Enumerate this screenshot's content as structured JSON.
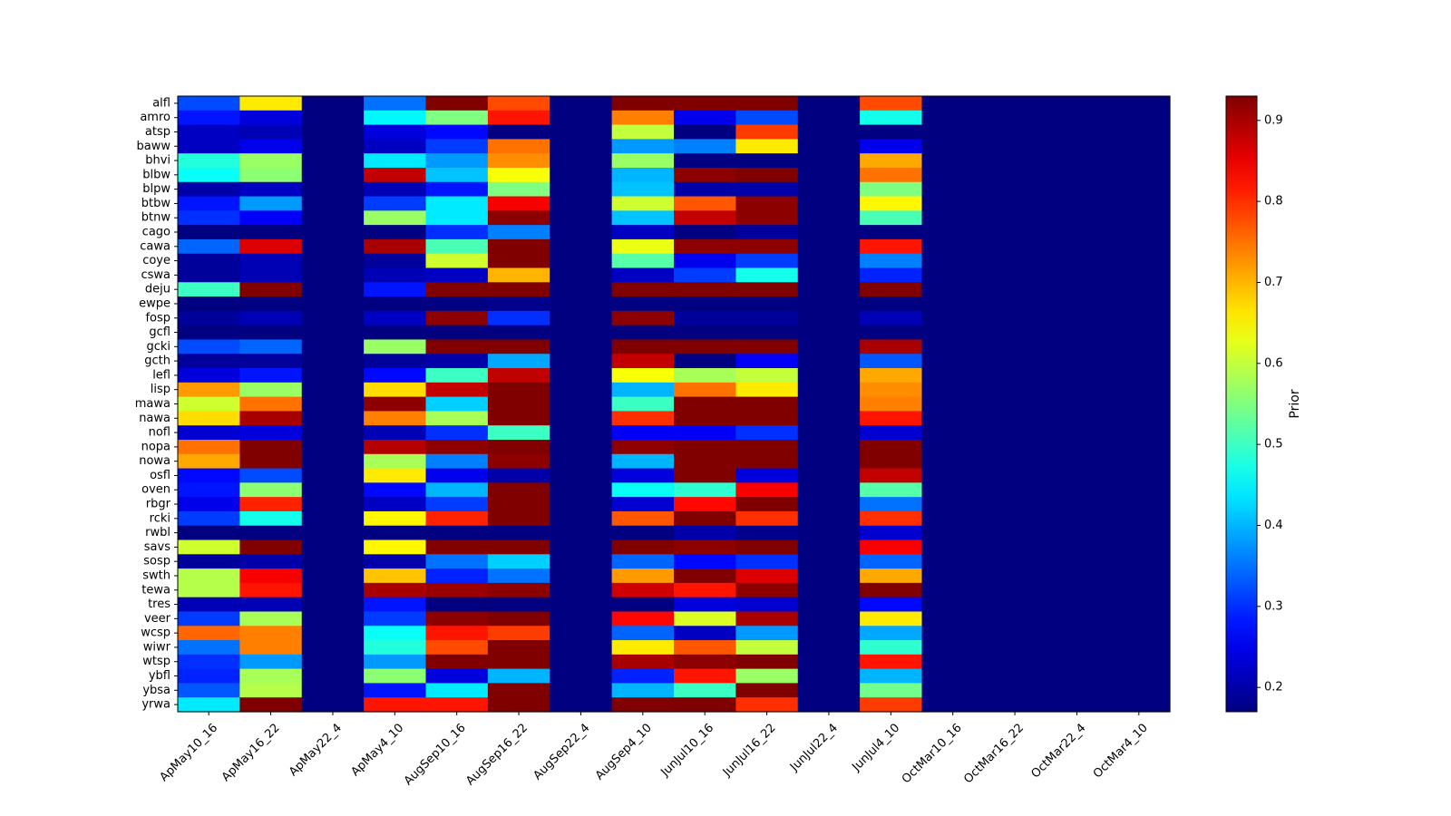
{
  "chart_data": {
    "type": "heatmap",
    "title": "",
    "xlabel": "",
    "ylabel": "",
    "colorbar_label": "Prior",
    "colormap": "jet",
    "vmin": 0.17,
    "vmax": 0.93,
    "colorbar_ticks": [
      "0.2",
      "0.3",
      "0.4",
      "0.5",
      "0.6",
      "0.7",
      "0.8",
      "0.9"
    ],
    "columns": [
      "ApMay10_16",
      "ApMay16_22",
      "ApMay22_4",
      "ApMay4_10",
      "AugSep10_16",
      "AugSep16_22",
      "AugSep22_4",
      "AugSep4_10",
      "JunJul10_16",
      "JunJul16_22",
      "JunJul22_4",
      "JunJul4_10",
      "OctMar10_16",
      "OctMar16_22",
      "OctMar22_4",
      "OctMar4_10"
    ],
    "rows": [
      "alfl",
      "amro",
      "atsp",
      "baww",
      "bhvi",
      "blbw",
      "blpw",
      "btbw",
      "btnw",
      "cago",
      "cawa",
      "coye",
      "cswa",
      "deju",
      "ewpe",
      "fosp",
      "gcfl",
      "gcki",
      "gcth",
      "lefl",
      "lisp",
      "mawa",
      "nawa",
      "nofl",
      "nopa",
      "nowa",
      "osfl",
      "oven",
      "rbgr",
      "rcki",
      "rwbl",
      "savs",
      "sosp",
      "swth",
      "tewa",
      "tres",
      "veer",
      "wcsp",
      "wiwr",
      "wtsp",
      "ybfl",
      "ybsa",
      "yrwa"
    ],
    "values": [
      [
        0.32,
        0.66,
        0.17,
        0.35,
        0.93,
        0.78,
        0.17,
        0.93,
        0.93,
        0.93,
        0.17,
        0.78,
        0.17,
        0.17,
        0.17,
        0.17
      ],
      [
        0.28,
        0.24,
        0.17,
        0.45,
        0.55,
        0.82,
        0.17,
        0.74,
        0.25,
        0.32,
        0.17,
        0.47,
        0.17,
        0.17,
        0.17,
        0.17
      ],
      [
        0.22,
        0.21,
        0.17,
        0.24,
        0.27,
        0.17,
        0.17,
        0.6,
        0.17,
        0.79,
        0.17,
        0.17,
        0.17,
        0.17,
        0.17,
        0.17
      ],
      [
        0.22,
        0.25,
        0.17,
        0.22,
        0.31,
        0.75,
        0.17,
        0.38,
        0.36,
        0.66,
        0.17,
        0.25,
        0.17,
        0.17,
        0.17,
        0.17
      ],
      [
        0.48,
        0.57,
        0.17,
        0.44,
        0.38,
        0.73,
        0.17,
        0.57,
        0.17,
        0.17,
        0.17,
        0.71,
        0.17,
        0.17,
        0.17,
        0.17
      ],
      [
        0.46,
        0.56,
        0.17,
        0.88,
        0.41,
        0.64,
        0.17,
        0.4,
        0.92,
        0.93,
        0.17,
        0.75,
        0.17,
        0.17,
        0.17,
        0.17
      ],
      [
        0.2,
        0.22,
        0.17,
        0.21,
        0.28,
        0.55,
        0.17,
        0.41,
        0.2,
        0.2,
        0.17,
        0.55,
        0.17,
        0.17,
        0.17,
        0.17
      ],
      [
        0.28,
        0.38,
        0.17,
        0.31,
        0.44,
        0.84,
        0.17,
        0.61,
        0.77,
        0.92,
        0.17,
        0.65,
        0.17,
        0.17,
        0.17,
        0.17
      ],
      [
        0.3,
        0.26,
        0.17,
        0.57,
        0.44,
        0.92,
        0.17,
        0.41,
        0.88,
        0.92,
        0.17,
        0.51,
        0.17,
        0.17,
        0.17,
        0.17
      ],
      [
        0.17,
        0.17,
        0.17,
        0.17,
        0.3,
        0.36,
        0.17,
        0.22,
        0.17,
        0.19,
        0.17,
        0.17,
        0.17,
        0.17,
        0.17,
        0.17
      ],
      [
        0.34,
        0.86,
        0.17,
        0.9,
        0.51,
        0.93,
        0.17,
        0.63,
        0.92,
        0.92,
        0.17,
        0.82,
        0.17,
        0.17,
        0.17,
        0.17
      ],
      [
        0.19,
        0.21,
        0.17,
        0.19,
        0.61,
        0.93,
        0.17,
        0.52,
        0.25,
        0.31,
        0.17,
        0.36,
        0.17,
        0.17,
        0.17,
        0.17
      ],
      [
        0.19,
        0.21,
        0.17,
        0.21,
        0.22,
        0.7,
        0.17,
        0.22,
        0.31,
        0.47,
        0.17,
        0.29,
        0.17,
        0.17,
        0.17,
        0.17
      ],
      [
        0.5,
        0.93,
        0.17,
        0.28,
        0.93,
        0.93,
        0.17,
        0.93,
        0.93,
        0.93,
        0.17,
        0.93,
        0.17,
        0.17,
        0.17,
        0.17
      ],
      [
        0.17,
        0.17,
        0.17,
        0.17,
        0.17,
        0.18,
        0.17,
        0.17,
        0.17,
        0.17,
        0.17,
        0.17,
        0.17,
        0.17,
        0.17,
        0.17
      ],
      [
        0.19,
        0.21,
        0.17,
        0.22,
        0.92,
        0.3,
        0.17,
        0.92,
        0.19,
        0.19,
        0.17,
        0.21,
        0.17,
        0.17,
        0.17,
        0.17
      ],
      [
        0.17,
        0.17,
        0.17,
        0.17,
        0.17,
        0.17,
        0.17,
        0.17,
        0.17,
        0.17,
        0.17,
        0.17,
        0.17,
        0.17,
        0.17,
        0.17
      ],
      [
        0.32,
        0.34,
        0.17,
        0.57,
        0.93,
        0.93,
        0.17,
        0.93,
        0.93,
        0.93,
        0.17,
        0.9,
        0.17,
        0.17,
        0.17,
        0.17
      ],
      [
        0.19,
        0.19,
        0.17,
        0.19,
        0.2,
        0.39,
        0.17,
        0.88,
        0.17,
        0.26,
        0.17,
        0.33,
        0.17,
        0.17,
        0.17,
        0.17
      ],
      [
        0.24,
        0.28,
        0.17,
        0.27,
        0.5,
        0.88,
        0.17,
        0.64,
        0.58,
        0.6,
        0.17,
        0.71,
        0.17,
        0.17,
        0.17,
        0.17
      ],
      [
        0.72,
        0.57,
        0.17,
        0.67,
        0.88,
        0.93,
        0.17,
        0.4,
        0.75,
        0.66,
        0.17,
        0.73,
        0.17,
        0.17,
        0.17,
        0.17
      ],
      [
        0.61,
        0.75,
        0.17,
        0.92,
        0.42,
        0.93,
        0.17,
        0.5,
        0.93,
        0.93,
        0.17,
        0.74,
        0.17,
        0.17,
        0.17,
        0.17
      ],
      [
        0.67,
        0.9,
        0.17,
        0.74,
        0.58,
        0.93,
        0.17,
        0.8,
        0.93,
        0.93,
        0.17,
        0.82,
        0.17,
        0.17,
        0.17,
        0.17
      ],
      [
        0.23,
        0.24,
        0.17,
        0.21,
        0.3,
        0.5,
        0.17,
        0.26,
        0.26,
        0.3,
        0.17,
        0.23,
        0.17,
        0.17,
        0.17,
        0.17
      ],
      [
        0.75,
        0.93,
        0.17,
        0.89,
        0.92,
        0.93,
        0.17,
        0.92,
        0.93,
        0.93,
        0.17,
        0.93,
        0.17,
        0.17,
        0.17,
        0.17
      ],
      [
        0.71,
        0.93,
        0.17,
        0.58,
        0.36,
        0.92,
        0.17,
        0.4,
        0.93,
        0.93,
        0.17,
        0.93,
        0.17,
        0.17,
        0.17,
        0.17
      ],
      [
        0.27,
        0.32,
        0.17,
        0.66,
        0.25,
        0.2,
        0.17,
        0.24,
        0.93,
        0.24,
        0.17,
        0.88,
        0.17,
        0.17,
        0.17,
        0.17
      ],
      [
        0.28,
        0.56,
        0.17,
        0.27,
        0.4,
        0.93,
        0.17,
        0.46,
        0.49,
        0.84,
        0.17,
        0.52,
        0.17,
        0.17,
        0.17,
        0.17
      ],
      [
        0.25,
        0.81,
        0.17,
        0.22,
        0.31,
        0.93,
        0.17,
        0.23,
        0.83,
        0.93,
        0.17,
        0.35,
        0.17,
        0.17,
        0.17,
        0.17
      ],
      [
        0.31,
        0.47,
        0.17,
        0.65,
        0.81,
        0.93,
        0.17,
        0.77,
        0.93,
        0.8,
        0.17,
        0.8,
        0.17,
        0.17,
        0.17,
        0.17
      ],
      [
        0.17,
        0.17,
        0.17,
        0.17,
        0.17,
        0.17,
        0.17,
        0.17,
        0.2,
        0.18,
        0.17,
        0.23,
        0.17,
        0.17,
        0.17,
        0.17
      ],
      [
        0.61,
        0.93,
        0.17,
        0.65,
        0.93,
        0.93,
        0.17,
        0.93,
        0.92,
        0.93,
        0.17,
        0.84,
        0.17,
        0.17,
        0.17,
        0.17
      ],
      [
        0.19,
        0.2,
        0.17,
        0.2,
        0.35,
        0.42,
        0.17,
        0.34,
        0.27,
        0.3,
        0.17,
        0.34,
        0.17,
        0.17,
        0.17,
        0.17
      ],
      [
        0.59,
        0.84,
        0.17,
        0.69,
        0.29,
        0.35,
        0.17,
        0.72,
        0.93,
        0.86,
        0.17,
        0.71,
        0.17,
        0.17,
        0.17,
        0.17
      ],
      [
        0.59,
        0.82,
        0.17,
        0.9,
        0.91,
        0.92,
        0.17,
        0.87,
        0.82,
        0.92,
        0.17,
        0.93,
        0.17,
        0.17,
        0.17,
        0.17
      ],
      [
        0.21,
        0.21,
        0.17,
        0.28,
        0.17,
        0.17,
        0.17,
        0.17,
        0.24,
        0.23,
        0.17,
        0.27,
        0.17,
        0.17,
        0.17,
        0.17
      ],
      [
        0.31,
        0.58,
        0.17,
        0.31,
        0.92,
        0.93,
        0.17,
        0.83,
        0.62,
        0.9,
        0.17,
        0.66,
        0.17,
        0.17,
        0.17,
        0.17
      ],
      [
        0.76,
        0.74,
        0.17,
        0.46,
        0.82,
        0.79,
        0.17,
        0.34,
        0.22,
        0.38,
        0.17,
        0.39,
        0.17,
        0.17,
        0.17,
        0.17
      ],
      [
        0.35,
        0.74,
        0.17,
        0.48,
        0.78,
        0.93,
        0.17,
        0.66,
        0.77,
        0.6,
        0.17,
        0.49,
        0.17,
        0.17,
        0.17,
        0.17
      ],
      [
        0.3,
        0.38,
        0.17,
        0.38,
        0.93,
        0.93,
        0.17,
        0.9,
        0.92,
        0.93,
        0.17,
        0.82,
        0.17,
        0.17,
        0.17,
        0.17
      ],
      [
        0.29,
        0.58,
        0.17,
        0.56,
        0.24,
        0.4,
        0.17,
        0.29,
        0.82,
        0.57,
        0.17,
        0.4,
        0.17,
        0.17,
        0.17,
        0.17
      ],
      [
        0.33,
        0.59,
        0.17,
        0.28,
        0.44,
        0.93,
        0.17,
        0.4,
        0.5,
        0.93,
        0.17,
        0.54,
        0.17,
        0.17,
        0.17,
        0.17
      ],
      [
        0.44,
        0.93,
        0.17,
        0.82,
        0.82,
        0.93,
        0.17,
        0.93,
        0.93,
        0.8,
        0.17,
        0.79,
        0.17,
        0.17,
        0.17,
        0.17
      ]
    ]
  }
}
